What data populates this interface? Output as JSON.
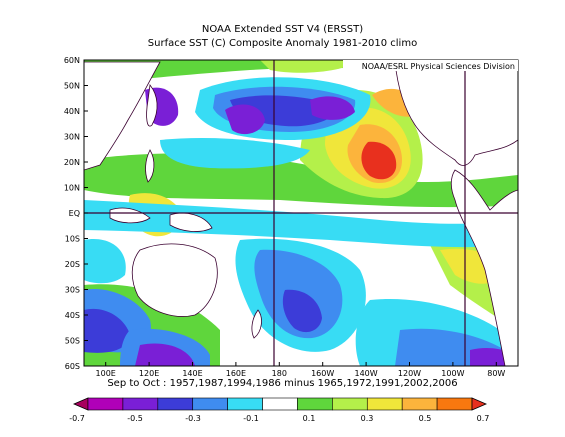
{
  "title": "NOAA Extended SST V4 (ERSST)",
  "subtitle": "Surface SST (C) Composite Anomaly 1981-2010 climo",
  "credit": "NOAA/ESRL Physical Sciences Division",
  "caption": "Sep to Oct : 1957,1987,1994,1986 minus 1965,1972,1991,2002,2006",
  "lat_labels": [
    "60N",
    "50N",
    "40N",
    "30N",
    "20N",
    "10N",
    "EQ",
    "10S",
    "20S",
    "30S",
    "40S",
    "50S",
    "60S"
  ],
  "lon_labels": [
    "100E",
    "120E",
    "140E",
    "160E",
    "180",
    "160W",
    "140W",
    "120W",
    "100W",
    "80W"
  ],
  "colorbar": {
    "tick_labels": [
      "-0.7",
      "-0.5",
      "-0.3",
      "-0.1",
      "0.1",
      "0.3",
      "0.5",
      "0.7"
    ],
    "colors": [
      "#a8005e",
      "#b000b8",
      "#7a1fd6",
      "#3c3cd8",
      "#3f8cf0",
      "#38dcf4",
      "#ffffff",
      "#5fd63c",
      "#b4f04a",
      "#f0e63a",
      "#fcb43c",
      "#f8780f",
      "#e8301e"
    ]
  },
  "chart_data": {
    "type": "heatmap",
    "title": "NOAA Extended SST V4 (ERSST)",
    "subtitle": "Surface SST (C) Composite Anomaly 1981-2010 climo",
    "variable": "Surface SST (C) Composite Anomaly",
    "units": "C",
    "lon_range": [
      "90E",
      "70W"
    ],
    "lat_range": [
      "60S",
      "60N"
    ],
    "contour_levels": [
      -0.7,
      -0.6,
      -0.5,
      -0.4,
      -0.3,
      -0.2,
      -0.1,
      0.1,
      0.2,
      0.3,
      0.4,
      0.5,
      0.6,
      0.7
    ],
    "reference_lines": [
      "EQ",
      "180",
      "90W"
    ]
  }
}
